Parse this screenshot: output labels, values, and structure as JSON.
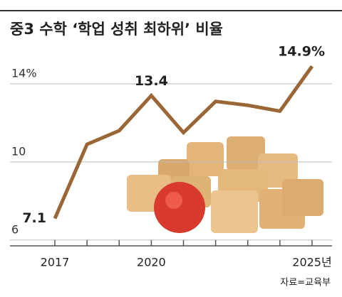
{
  "chart_data": {
    "type": "line",
    "title": "중3 수학 ‘학업 성취 최하위’ 비율",
    "categories": [
      "2017",
      null,
      null,
      "2020",
      null,
      null,
      null,
      null,
      "2025년"
    ],
    "series": [
      {
        "name": null,
        "color": "#9a6636",
        "values": [
          7.1,
          10.9,
          11.6,
          13.4,
          11.5,
          13.1,
          12.9,
          12.6,
          14.9
        ],
        "value_labels": [
          "7.1",
          null,
          null,
          "13.4",
          null,
          null,
          null,
          null,
          "14.9%"
        ]
      }
    ],
    "ylim": [
      5.7,
      15.2
    ],
    "yticks": [
      6,
      10,
      {
        "value": 14,
        "label": "14%"
      }
    ],
    "grid": true,
    "source": "자료=교육부"
  }
}
